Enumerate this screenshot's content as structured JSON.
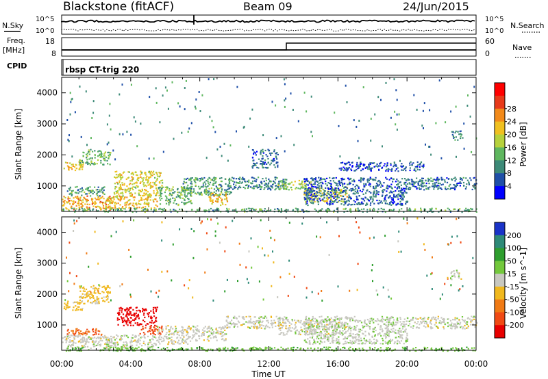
{
  "header": {
    "station": "Blackstone (fitACF)",
    "beam": "Beam 09",
    "date": "24/Jun/2015"
  },
  "top_panel": {
    "left_label_1": "N.Sky",
    "left_label_2": "Freq.",
    "left_label_2b": "[MHz]",
    "left_label_3": "CPID",
    "left_ticks_1": [
      "10^5",
      "10^0"
    ],
    "left_ticks_2": [
      "18",
      "8"
    ],
    "right_ticks_1": [
      "10^5",
      "10^0"
    ],
    "right_ticks_2": [
      "60",
      "0"
    ],
    "right_label_1": "N.Search",
    "right_label_2": "Nave",
    "cpid_text": "rbsp CT-trig 220"
  },
  "chart_data": [
    {
      "type": "heatmap",
      "name": "power",
      "ylabel": "Slant Range [km]",
      "yticks": [
        "1000",
        "2000",
        "3000",
        "4000"
      ],
      "ylim": [
        180,
        4500
      ],
      "xlim": [
        0,
        24
      ],
      "colorbar_label": "Power [dB]",
      "colorbar_ticks": [
        "4",
        "8",
        "12",
        "16",
        "20",
        "24",
        "28"
      ],
      "colorbar_colors": [
        "#0000ff",
        "#1f4fa8",
        "#3d8a78",
        "#5fb75f",
        "#b6d13c",
        "#f0c020",
        "#f28a1a",
        "#e83a1a",
        "#ff0000"
      ],
      "echo_regions": [
        {
          "t": [
            0.1,
            1.2
          ],
          "r": [
            1500,
            1800
          ],
          "p": 22
        },
        {
          "t": [
            1.0,
            2.8
          ],
          "r": [
            1700,
            2200
          ],
          "p": 14
        },
        {
          "t": [
            0.0,
            3.0
          ],
          "r": [
            250,
            700
          ],
          "p": 24
        },
        {
          "t": [
            0.3,
            2.5
          ],
          "r": [
            700,
            1000
          ],
          "p": 12
        },
        {
          "t": [
            2.5,
            5.5
          ],
          "r": [
            300,
            700
          ],
          "p": 22
        },
        {
          "t": [
            3.0,
            5.8
          ],
          "r": [
            700,
            1500
          ],
          "p": 20
        },
        {
          "t": [
            5.5,
            7.5
          ],
          "r": [
            400,
            1000
          ],
          "p": 14
        },
        {
          "t": [
            7.0,
            9.8
          ],
          "r": [
            700,
            1300
          ],
          "p": 12
        },
        {
          "t": [
            8.5,
            9.6
          ],
          "r": [
            400,
            800
          ],
          "p": 22
        },
        {
          "t": [
            9.5,
            13.0
          ],
          "r": [
            900,
            1300
          ],
          "p": 9
        },
        {
          "t": [
            12.5,
            14.5
          ],
          "r": [
            900,
            1200
          ],
          "p": 16
        },
        {
          "t": [
            14.0,
            16.5
          ],
          "r": [
            500,
            1000
          ],
          "p": 20
        },
        {
          "t": [
            14.0,
            20.0
          ],
          "r": [
            400,
            1300
          ],
          "p": 7
        },
        {
          "t": [
            16.0,
            21.0
          ],
          "r": [
            1500,
            1800
          ],
          "p": 6
        },
        {
          "t": [
            20.0,
            24.0
          ],
          "r": [
            900,
            1300
          ],
          "p": 8
        },
        {
          "t": [
            22.5,
            23.2
          ],
          "r": [
            2500,
            2800
          ],
          "p": 10
        },
        {
          "t": [
            0.0,
            24.0
          ],
          "r": [
            180,
            300
          ],
          "p": 12
        },
        {
          "t": [
            11.0,
            12.5
          ],
          "r": [
            1600,
            2200
          ],
          "p": 8
        }
      ]
    },
    {
      "type": "heatmap",
      "name": "velocity",
      "ylabel": "Slant Range [km]",
      "yticks": [
        "1000",
        "2000",
        "3000",
        "4000"
      ],
      "ylim": [
        180,
        4500
      ],
      "xlim": [
        0,
        24
      ],
      "xlabel": "Time UT",
      "xticks": [
        "00:00",
        "04:00",
        "08:00",
        "12:00",
        "16:00",
        "20:00",
        "00:00"
      ],
      "colorbar_label": "Velocity [m s^-1]",
      "colorbar_ticks": [
        "200",
        "100",
        "50",
        "15",
        "-15",
        "-50",
        "-100",
        "-200"
      ],
      "colorbar_colors": [
        "#1a33c8",
        "#2e8a78",
        "#2e9e2e",
        "#73c83c",
        "#c8c8c0",
        "#f0b81e",
        "#f07a14",
        "#f04a14",
        "#e80000"
      ],
      "echo_regions": [
        {
          "t": [
            0.1,
            1.2
          ],
          "r": [
            1500,
            1800
          ],
          "v": -30
        },
        {
          "t": [
            1.0,
            2.8
          ],
          "r": [
            1700,
            2300
          ],
          "v": -30
        },
        {
          "t": [
            0.0,
            3.0
          ],
          "r": [
            250,
            700
          ],
          "v": 0
        },
        {
          "t": [
            0.3,
            2.5
          ],
          "r": [
            700,
            900
          ],
          "v": -100
        },
        {
          "t": [
            2.5,
            5.5
          ],
          "r": [
            300,
            700
          ],
          "v": 0
        },
        {
          "t": [
            3.2,
            5.5
          ],
          "r": [
            1000,
            1600
          ],
          "v": -220
        },
        {
          "t": [
            4.5,
            5.8
          ],
          "r": [
            700,
            1000
          ],
          "v": -120
        },
        {
          "t": [
            5.5,
            7.5
          ],
          "r": [
            400,
            1000
          ],
          "v": 0
        },
        {
          "t": [
            7.5,
            9.5
          ],
          "r": [
            500,
            1000
          ],
          "v": 0
        },
        {
          "t": [
            9.5,
            13.0
          ],
          "r": [
            900,
            1300
          ],
          "v": 0
        },
        {
          "t": [
            12.5,
            16.5
          ],
          "r": [
            700,
            1200
          ],
          "v": 0
        },
        {
          "t": [
            14.0,
            20.0
          ],
          "r": [
            400,
            1300
          ],
          "v": 5
        },
        {
          "t": [
            20.0,
            24.0
          ],
          "r": [
            900,
            1300
          ],
          "v": 0
        },
        {
          "t": [
            0.0,
            24.0
          ],
          "r": [
            180,
            300
          ],
          "v": 40
        },
        {
          "t": [
            22.5,
            23.2
          ],
          "r": [
            2500,
            2800
          ],
          "v": 0
        }
      ]
    }
  ]
}
